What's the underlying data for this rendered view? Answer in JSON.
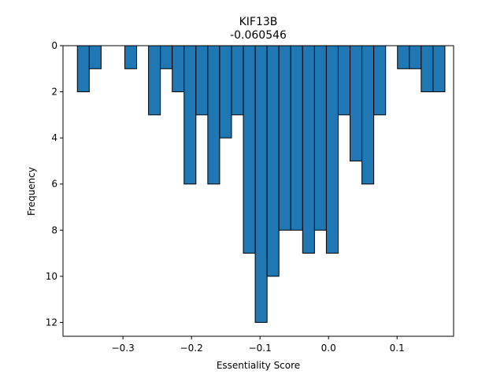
{
  "chart_data": {
    "type": "bar",
    "title": "KIF13B",
    "subtitle": "-0.060546",
    "xlabel": "Essentiality Score",
    "ylabel": "Frequency",
    "xlim": [
      -0.3875,
      0.1825
    ],
    "ylim": [
      12.6,
      0
    ],
    "y_inverted": true,
    "grid": false,
    "bar_color": "#1f77b4",
    "edge_color": "#000000",
    "bin_width": 0.0173,
    "x_ticks": [
      -0.3,
      -0.2,
      -0.1,
      0.0,
      0.1
    ],
    "x_tick_labels": [
      "−0.3",
      "−0.2",
      "−0.1",
      "0.0",
      "0.1"
    ],
    "y_ticks": [
      0,
      2,
      4,
      6,
      8,
      10,
      12
    ],
    "y_tick_labels": [
      "0",
      "2",
      "4",
      "6",
      "8",
      "10",
      "12"
    ],
    "bins": [
      {
        "x": -0.3665,
        "count": 2
      },
      {
        "x": -0.3492,
        "count": 1
      },
      {
        "x": -0.3319,
        "count": 0
      },
      {
        "x": -0.3146,
        "count": 0
      },
      {
        "x": -0.2973,
        "count": 1
      },
      {
        "x": -0.28,
        "count": 0
      },
      {
        "x": -0.2627,
        "count": 3
      },
      {
        "x": -0.2454,
        "count": 1
      },
      {
        "x": -0.2281,
        "count": 2
      },
      {
        "x": -0.2108,
        "count": 6
      },
      {
        "x": -0.1935,
        "count": 3
      },
      {
        "x": -0.1762,
        "count": 6
      },
      {
        "x": -0.1589,
        "count": 4
      },
      {
        "x": -0.1416,
        "count": 3
      },
      {
        "x": -0.1243,
        "count": 9
      },
      {
        "x": -0.107,
        "count": 12
      },
      {
        "x": -0.0897,
        "count": 10
      },
      {
        "x": -0.0724,
        "count": 8
      },
      {
        "x": -0.0551,
        "count": 8
      },
      {
        "x": -0.0378,
        "count": 9
      },
      {
        "x": -0.0205,
        "count": 8
      },
      {
        "x": -0.0032,
        "count": 9
      },
      {
        "x": 0.0141,
        "count": 3
      },
      {
        "x": 0.0314,
        "count": 5
      },
      {
        "x": 0.0487,
        "count": 6
      },
      {
        "x": 0.066,
        "count": 3
      },
      {
        "x": 0.0833,
        "count": 0
      },
      {
        "x": 0.1006,
        "count": 1
      },
      {
        "x": 0.1179,
        "count": 1
      },
      {
        "x": 0.1352,
        "count": 2
      },
      {
        "x": 0.1525,
        "count": 2
      }
    ]
  }
}
